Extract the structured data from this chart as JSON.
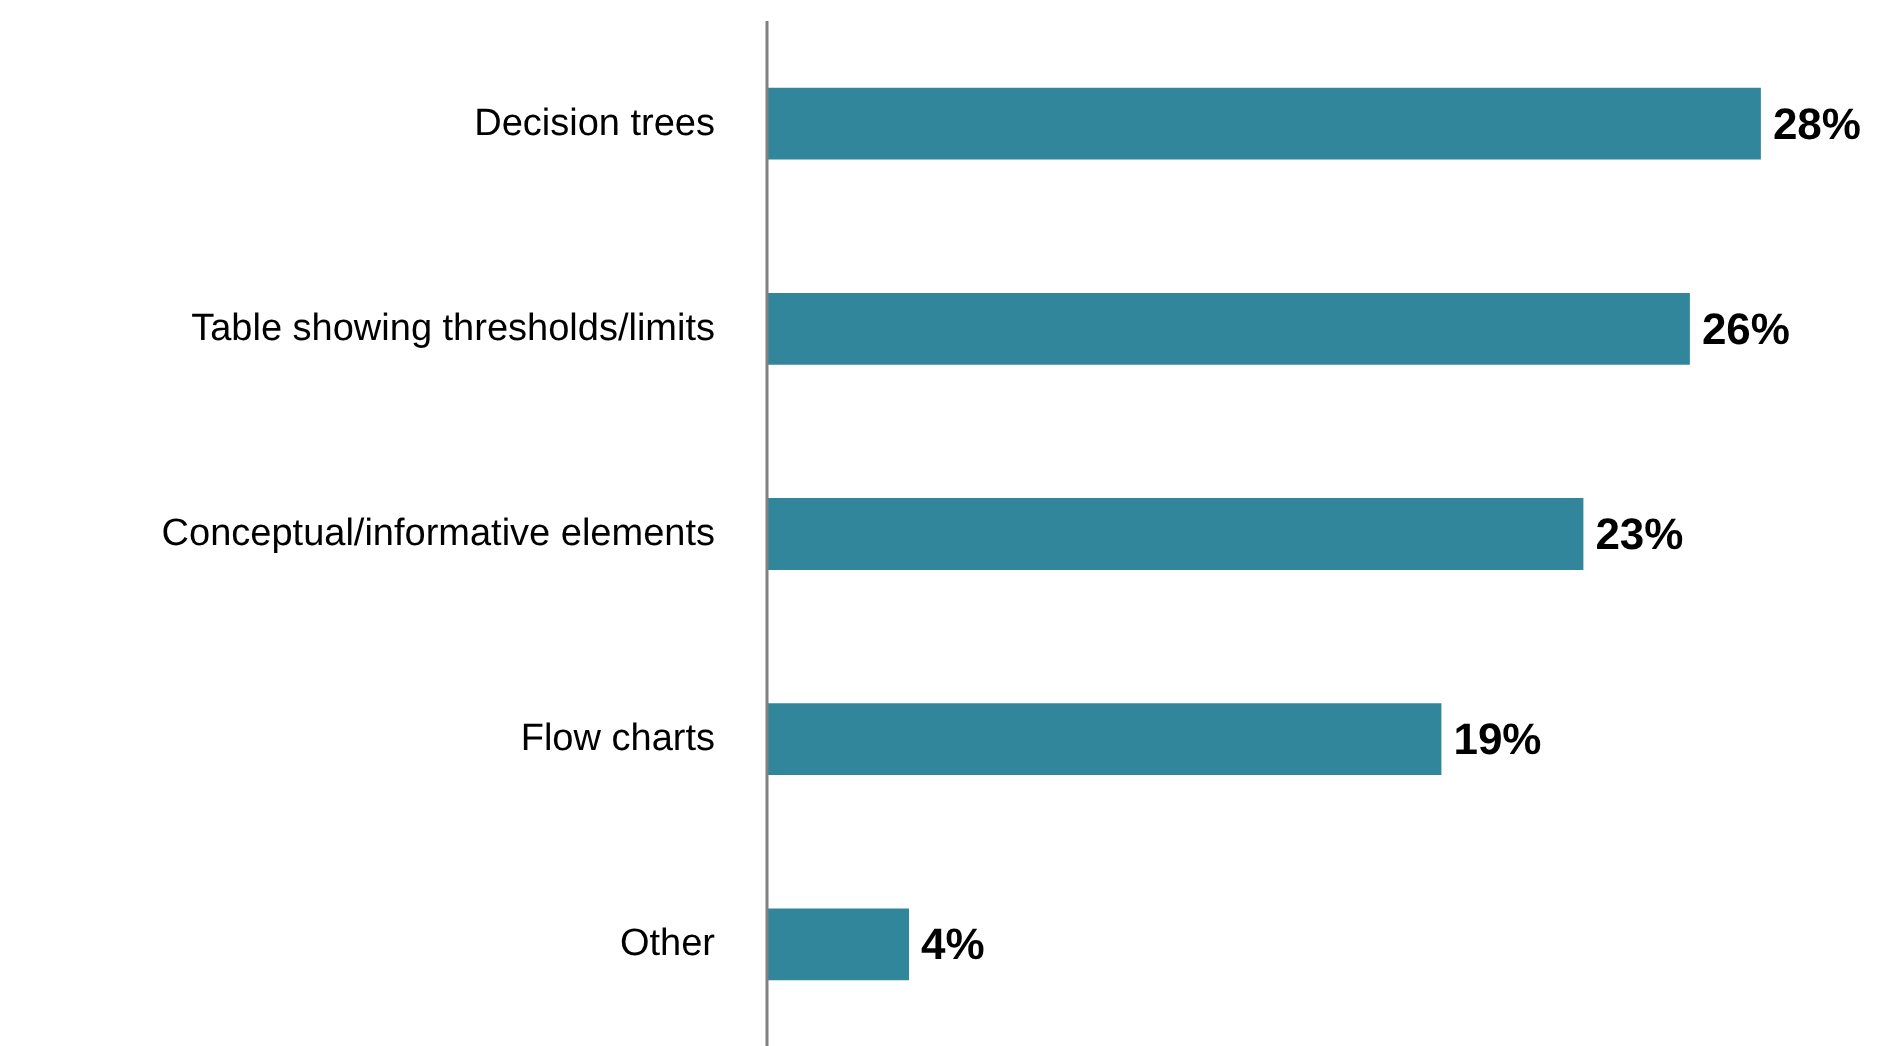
{
  "chart_data": {
    "type": "bar",
    "orientation": "horizontal",
    "categories": [
      "Decision trees",
      "Table showing thresholds/limits",
      "Conceptual/informative elements",
      "Flow charts",
      "Other"
    ],
    "values": [
      28,
      26,
      23,
      19,
      4
    ],
    "color": "#31869b",
    "value_labels": [
      "28%",
      "26%",
      "23%",
      "19%",
      "4%"
    ]
  }
}
